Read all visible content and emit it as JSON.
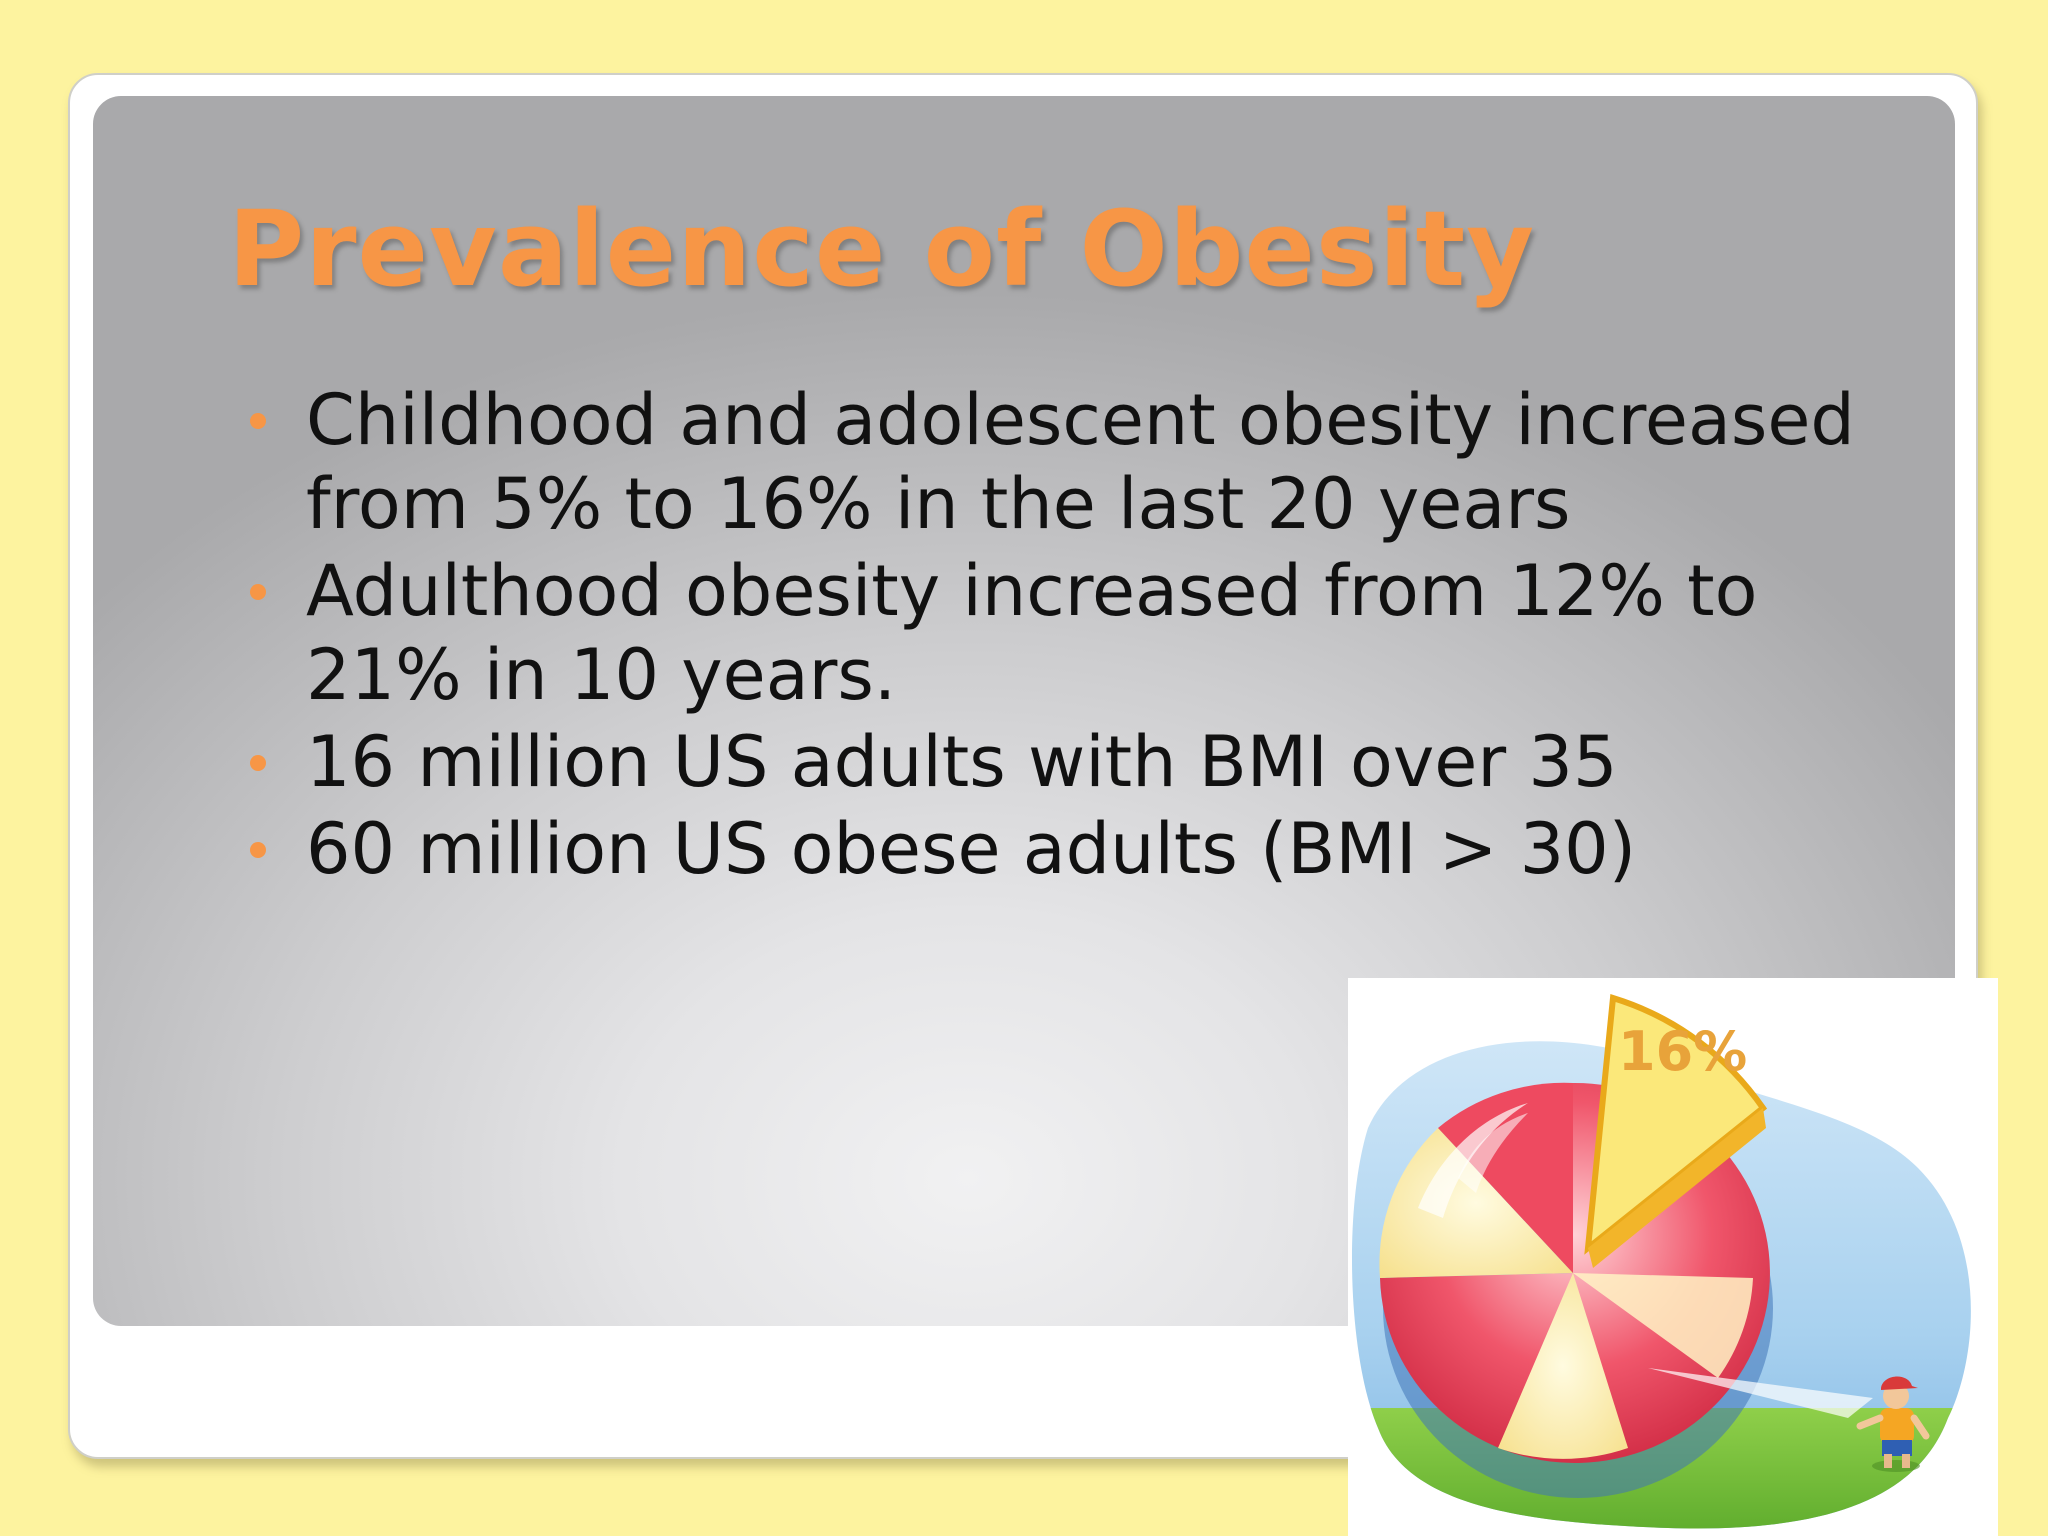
{
  "slide": {
    "title": "Prevalence of Obesity",
    "bullets": [
      "Childhood and adolescent obesity increased from 5% to 16% in the last 20 years",
      "Adulthood obesity increased from 12% to 21% in 10 years.",
      "16 million US adults with BMI over 35",
      "60 million US obese adults (BMI > 30)"
    ]
  },
  "clipart": {
    "label": "16%",
    "description_icon": "pie-chart-with-child-illustration"
  },
  "colors": {
    "background": "#fdf39f",
    "accent": "#f79646",
    "text": "#111111"
  }
}
